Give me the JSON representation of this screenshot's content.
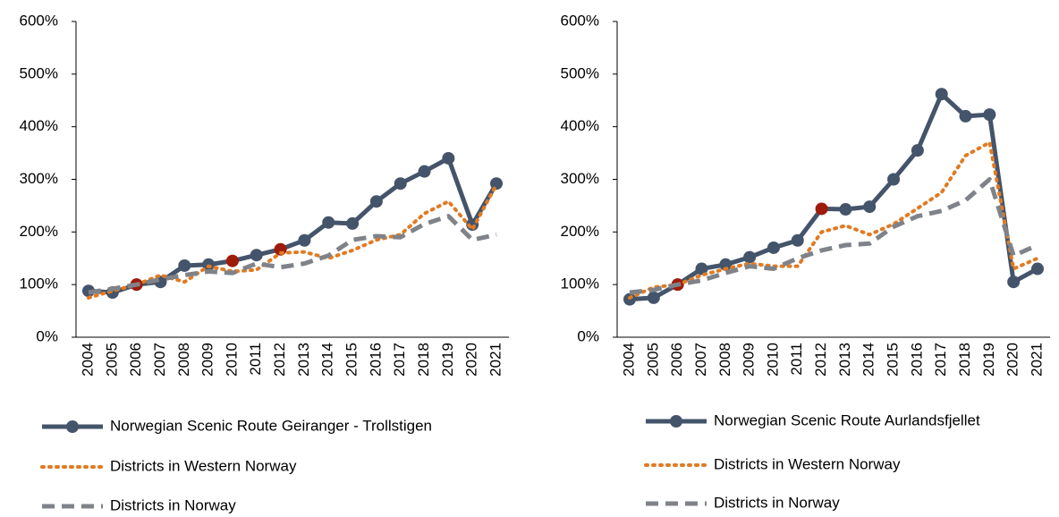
{
  "chart_data": [
    {
      "type": "line",
      "categories": [
        "2004",
        "2005",
        "2006",
        "2007",
        "2008",
        "2009",
        "2010",
        "2011",
        "2012",
        "2013",
        "2014",
        "2015",
        "2016",
        "2017",
        "2018",
        "2019",
        "2020",
        "2021"
      ],
      "ylim": [
        0,
        600
      ],
      "yticks": [
        {
          "value": 0,
          "label": "0%"
        },
        {
          "value": 100,
          "label": "100%"
        },
        {
          "value": 200,
          "label": "200%"
        },
        {
          "value": 300,
          "label": "300%"
        },
        {
          "value": 400,
          "label": "400%"
        },
        {
          "value": 500,
          "label": "500%"
        },
        {
          "value": 600,
          "label": "600%"
        }
      ],
      "grid": false,
      "legend": "bottom",
      "series": [
        {
          "name": "Norwegian Scenic Route Geiranger - Trollstigen",
          "color": "#44546a",
          "style": "solid",
          "marker": true,
          "highlight_indices": [
            2,
            6,
            8
          ],
          "highlight_color": "#9e1b0a",
          "values": [
            88,
            85,
            100,
            105,
            136,
            138,
            145,
            156,
            167,
            184,
            218,
            216,
            258,
            292,
            315,
            340,
            214,
            292
          ]
        },
        {
          "name": "Districts in Western Norway",
          "color": "#e07b24",
          "style": "dotted",
          "marker": false,
          "values": [
            75,
            88,
            100,
            118,
            105,
            135,
            125,
            128,
            160,
            162,
            150,
            165,
            185,
            195,
            235,
            258,
            205,
            290
          ]
        },
        {
          "name": "Districts in Norway",
          "color": "#7f8389",
          "style": "dashed",
          "marker": false,
          "values": [
            85,
            92,
            100,
            110,
            118,
            125,
            122,
            140,
            133,
            140,
            155,
            185,
            192,
            190,
            215,
            230,
            185,
            195
          ]
        }
      ]
    },
    {
      "type": "line",
      "categories": [
        "2004",
        "2005",
        "2006",
        "2007",
        "2008",
        "2009",
        "2010",
        "2011",
        "2012",
        "2013",
        "2014",
        "2015",
        "2016",
        "2017",
        "2018",
        "2019",
        "2020",
        "2021"
      ],
      "ylim": [
        0,
        600
      ],
      "yticks": [
        {
          "value": 0,
          "label": "0%"
        },
        {
          "value": 100,
          "label": "100%"
        },
        {
          "value": 200,
          "label": "200%"
        },
        {
          "value": 300,
          "label": "300%"
        },
        {
          "value": 400,
          "label": "400%"
        },
        {
          "value": 500,
          "label": "500%"
        },
        {
          "value": 600,
          "label": "600%"
        }
      ],
      "grid": false,
      "legend": "bottom",
      "series": [
        {
          "name": "Norwegian Scenic Route Aurlandsfjellet",
          "color": "#44546a",
          "style": "solid",
          "marker": true,
          "highlight_indices": [
            2,
            8
          ],
          "highlight_color": "#9e1b0a",
          "values": [
            72,
            75,
            100,
            130,
            138,
            152,
            170,
            184,
            244,
            243,
            248,
            300,
            355,
            462,
            420,
            423,
            105,
            130
          ]
        },
        {
          "name": "Districts in Western Norway",
          "color": "#e07b24",
          "style": "dotted",
          "marker": false,
          "values": [
            75,
            95,
            100,
            118,
            130,
            140,
            135,
            135,
            200,
            212,
            195,
            215,
            245,
            275,
            345,
            370,
            130,
            150
          ]
        },
        {
          "name": "Districts in Norway",
          "color": "#7f8389",
          "style": "dashed",
          "marker": false,
          "values": [
            85,
            90,
            100,
            108,
            122,
            135,
            130,
            150,
            165,
            175,
            178,
            210,
            230,
            240,
            260,
            300,
            155,
            175
          ]
        }
      ]
    }
  ]
}
